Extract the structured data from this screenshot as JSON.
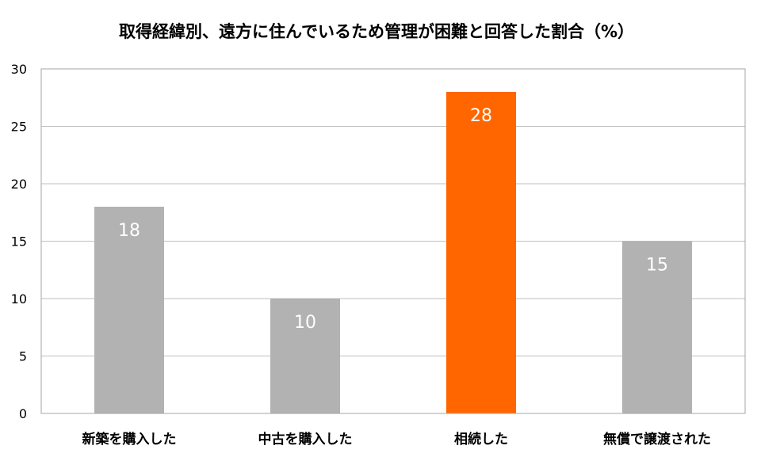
{
  "chart_data": {
    "type": "bar",
    "title": "取得経緯別、遠方に住んでいるため管理が困難と回答した割合（%）",
    "categories": [
      "新築を購入した",
      "中古を購入した",
      "相続した",
      "無償で譲渡された"
    ],
    "values": [
      18,
      10,
      28,
      15
    ],
    "colors": [
      "#b2b2b2",
      "#b2b2b2",
      "#ff6600",
      "#b2b2b2"
    ],
    "xlabel": "",
    "ylabel": "",
    "ylim": [
      0,
      30
    ],
    "yticks": [
      0,
      5,
      10,
      15,
      20,
      25,
      30
    ],
    "grid": true,
    "legend": "none",
    "data_labels": true
  }
}
